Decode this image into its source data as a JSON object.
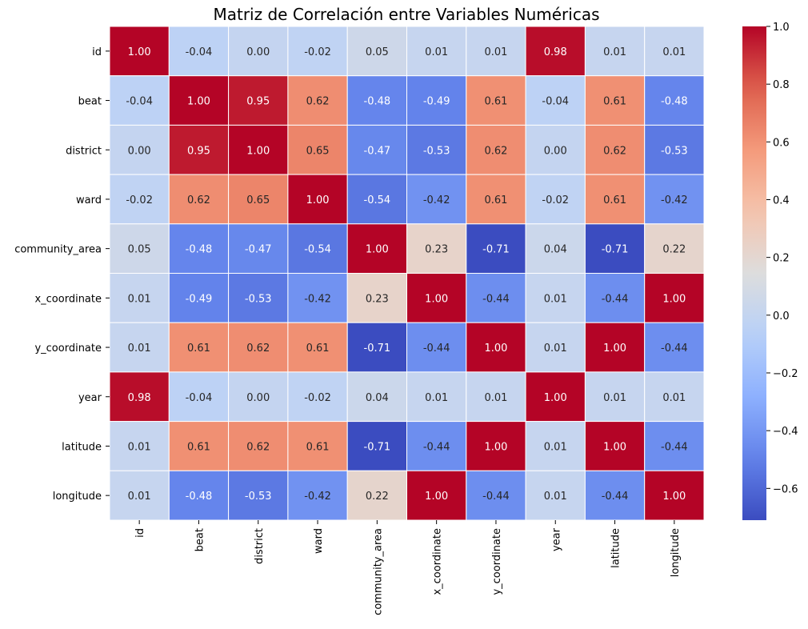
{
  "chart_data": {
    "type": "heatmap",
    "title": "Matriz de Correlación entre Variables Numéricas",
    "xlabel": "",
    "ylabel": "",
    "rows": [
      "id",
      "beat",
      "district",
      "ward",
      "community_area",
      "x_coordinate",
      "y_coordinate",
      "year",
      "latitude",
      "longitude"
    ],
    "columns": [
      "id",
      "beat",
      "district",
      "ward",
      "community_area",
      "x_coordinate",
      "y_coordinate",
      "year",
      "latitude",
      "longitude"
    ],
    "values": [
      [
        1.0,
        -0.04,
        -0.0,
        -0.02,
        0.05,
        0.01,
        0.01,
        0.98,
        0.01,
        0.01
      ],
      [
        -0.04,
        1.0,
        0.95,
        0.62,
        -0.48,
        -0.49,
        0.61,
        -0.04,
        0.61,
        -0.48
      ],
      [
        -0.0,
        0.95,
        1.0,
        0.65,
        -0.47,
        -0.53,
        0.62,
        -0.0,
        0.62,
        -0.53
      ],
      [
        -0.02,
        0.62,
        0.65,
        1.0,
        -0.54,
        -0.42,
        0.61,
        -0.02,
        0.61,
        -0.42
      ],
      [
        0.05,
        -0.48,
        -0.47,
        -0.54,
        1.0,
        0.23,
        -0.71,
        0.04,
        -0.71,
        0.22
      ],
      [
        0.01,
        -0.49,
        -0.53,
        -0.42,
        0.23,
        1.0,
        -0.44,
        0.01,
        -0.44,
        1.0
      ],
      [
        0.01,
        0.61,
        0.62,
        0.61,
        -0.71,
        -0.44,
        1.0,
        0.01,
        1.0,
        -0.44
      ],
      [
        0.98,
        -0.04,
        -0.0,
        -0.02,
        0.04,
        0.01,
        0.01,
        1.0,
        0.01,
        0.01
      ],
      [
        0.01,
        0.61,
        0.62,
        0.61,
        -0.71,
        -0.44,
        1.0,
        0.01,
        1.0,
        -0.44
      ],
      [
        0.01,
        -0.48,
        -0.53,
        -0.42,
        0.22,
        1.0,
        -0.44,
        0.01,
        -0.44,
        1.0
      ]
    ],
    "value_format": "2 decimals",
    "colormap": "coolwarm",
    "color_range": [
      -0.71,
      1.0
    ],
    "colorbar_ticks": [
      1.0,
      0.8,
      0.6,
      0.4,
      0.2,
      0.0,
      -0.2,
      -0.4,
      -0.6
    ],
    "colorbar_tick_labels": [
      "1.0",
      "0.8",
      "0.6",
      "0.4",
      "0.2",
      "0.0",
      "−0.2",
      "−0.4",
      "−0.6"
    ],
    "colorbar_position": "right",
    "grid": false
  }
}
